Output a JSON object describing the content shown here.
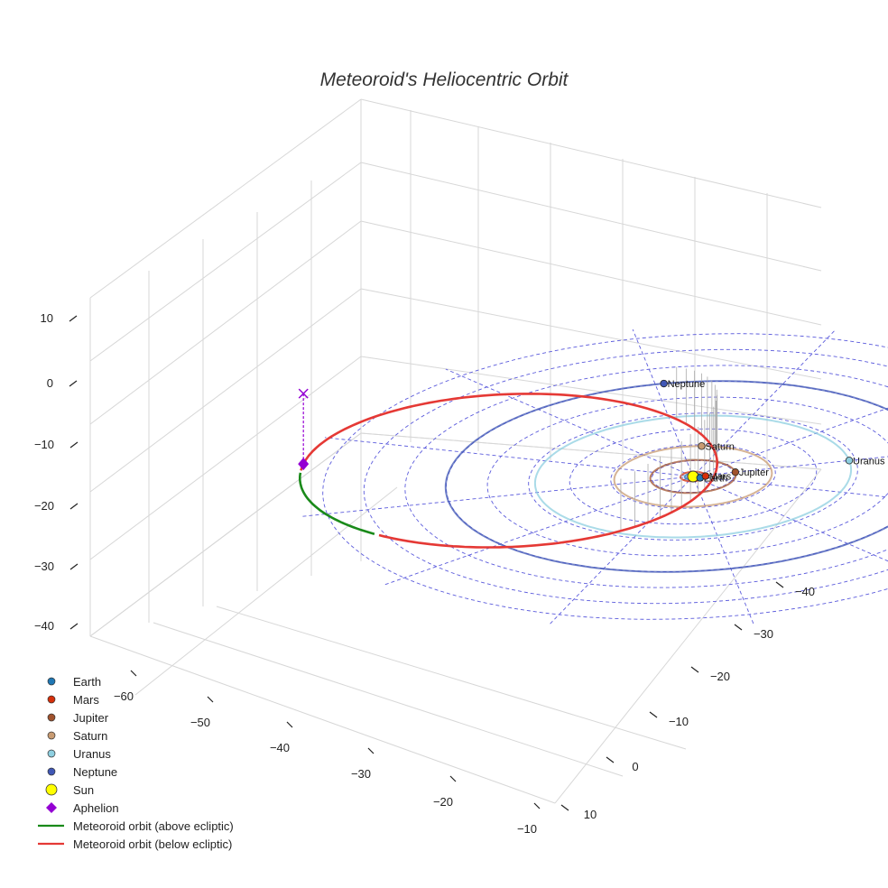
{
  "chart_data": {
    "type": "3d-orbit",
    "title": "Meteoroid's Heliocentric Orbit",
    "x_ticks": [
      -60,
      -50,
      -40,
      -30,
      -20,
      -10
    ],
    "y_ticks": [
      -40,
      -30,
      -20,
      -10,
      0,
      10
    ],
    "z_ticks": [
      10,
      0,
      -10,
      -20,
      -30,
      -40
    ],
    "xlim": [
      -62,
      -8
    ],
    "ylim": [
      -45,
      12
    ],
    "zlim": [
      -45,
      13
    ],
    "grid": true,
    "ecliptic_grid": {
      "ring_radii_au": [
        5,
        10,
        15,
        20,
        25,
        30,
        35,
        40,
        45
      ],
      "radial_line_angles_deg": [
        0,
        30,
        60,
        90,
        120,
        150
      ]
    },
    "sun": {
      "name": "Sun",
      "position_au": [
        0,
        0,
        0
      ],
      "color": "#ffff00"
    },
    "planets": [
      {
        "name": "Earth",
        "a_au": 1.0,
        "theta_deg": 10,
        "color": "#1f77b4"
      },
      {
        "name": "Mars",
        "a_au": 1.52,
        "theta_deg": -20,
        "color": "#d62f0a"
      },
      {
        "name": "Jupiter",
        "a_au": 5.2,
        "theta_deg": -30,
        "color": "#a0522d"
      },
      {
        "name": "Saturn",
        "a_au": 9.58,
        "theta_deg": -105,
        "color": "#c89b72"
      },
      {
        "name": "Uranus",
        "a_au": 19.2,
        "theta_deg": -30,
        "color": "#8ecfe0"
      },
      {
        "name": "Neptune",
        "a_au": 30.07,
        "theta_deg": -118,
        "color": "#4057b5"
      }
    ],
    "meteoroid": {
      "label_above": "Meteoroid orbit (above ecliptic)",
      "label_below": "Meteoroid orbit (below ecliptic)",
      "color_above": "#1a8a1a",
      "color_below": "#e53935",
      "semi_major_axis_au": 25.4,
      "eccentricity": 0.96,
      "aphelion_au": [
        -47.5,
        8.5,
        0
      ],
      "aphelion_height_au": 12
    },
    "aphelion": {
      "name": "Aphelion",
      "color": "#9400d3"
    },
    "legend": [
      {
        "label": "Earth",
        "kind": "dot",
        "color": "#1f77b4"
      },
      {
        "label": "Mars",
        "kind": "dot",
        "color": "#d62f0a"
      },
      {
        "label": "Jupiter",
        "kind": "dot",
        "color": "#a0522d"
      },
      {
        "label": "Saturn",
        "kind": "dot",
        "color": "#c89b72"
      },
      {
        "label": "Uranus",
        "kind": "dot",
        "color": "#8ecfe0"
      },
      {
        "label": "Neptune",
        "kind": "dot",
        "color": "#4057b5"
      },
      {
        "label": "Sun",
        "kind": "sun",
        "color": "#ffff00"
      },
      {
        "label": "Aphelion",
        "kind": "diamond",
        "color": "#9400d3"
      },
      {
        "label": "Meteoroid orbit (above ecliptic)",
        "kind": "line",
        "color": "#1a8a1a"
      },
      {
        "label": "Meteoroid orbit (below ecliptic)",
        "kind": "line",
        "color": "#e53935"
      }
    ],
    "legend_position": "bottom-left"
  }
}
